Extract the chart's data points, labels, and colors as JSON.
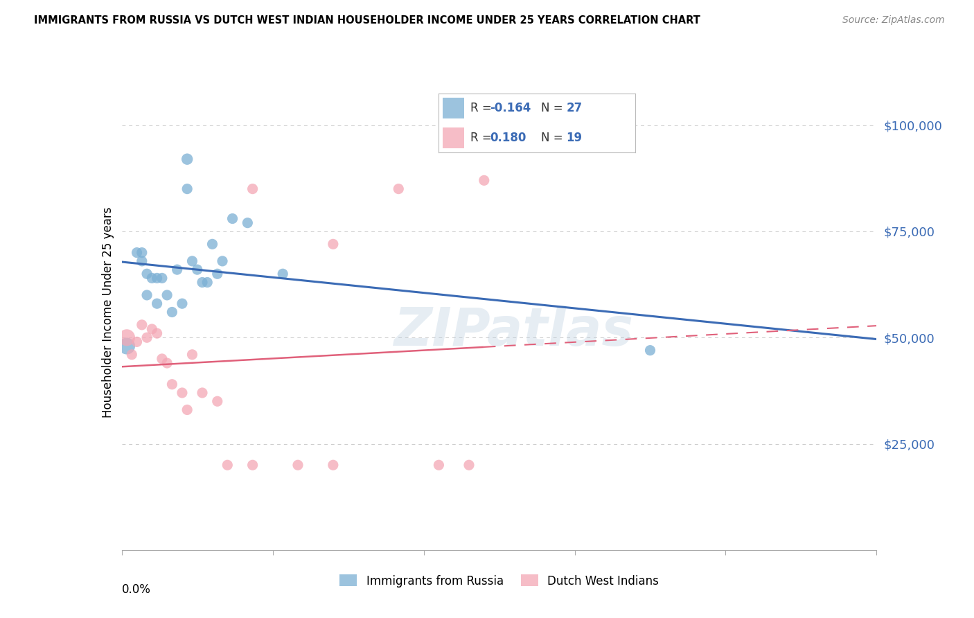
{
  "title": "IMMIGRANTS FROM RUSSIA VS DUTCH WEST INDIAN HOUSEHOLDER INCOME UNDER 25 YEARS CORRELATION CHART",
  "source": "Source: ZipAtlas.com",
  "ylabel": "Householder Income Under 25 years",
  "watermark": "ZIPatlas",
  "xlim": [
    0.0,
    0.15
  ],
  "ylim": [
    0,
    112000
  ],
  "yticks": [
    25000,
    50000,
    75000,
    100000
  ],
  "ytick_labels": [
    "$25,000",
    "$50,000",
    "$75,000",
    "$100,000"
  ],
  "blue_color": "#7BAFD4",
  "pink_color": "#F4A7B5",
  "blue_line_color": "#3B6BB5",
  "pink_line_color": "#E0607A",
  "tick_label_color": "#3B6BB5",
  "grid_color": "#CCCCCC",
  "background_color": "#FFFFFF",
  "legend_r1_val": "-0.164",
  "legend_n1_val": "27",
  "legend_r2_val": "0.180",
  "legend_n2_val": "19",
  "legend_label1": "Immigrants from Russia",
  "legend_label2": "Dutch West Indians",
  "blue_scatter_x": [
    0.001,
    0.003,
    0.004,
    0.004,
    0.005,
    0.005,
    0.006,
    0.007,
    0.007,
    0.008,
    0.009,
    0.01,
    0.011,
    0.012,
    0.013,
    0.013,
    0.014,
    0.015,
    0.016,
    0.017,
    0.018,
    0.019,
    0.02,
    0.022,
    0.025,
    0.032,
    0.105
  ],
  "blue_scatter_y": [
    48000,
    70000,
    70000,
    68000,
    65000,
    60000,
    64000,
    64000,
    58000,
    64000,
    60000,
    56000,
    66000,
    58000,
    85000,
    92000,
    68000,
    66000,
    63000,
    63000,
    72000,
    65000,
    68000,
    78000,
    77000,
    65000,
    47000
  ],
  "blue_scatter_sizes": [
    300,
    120,
    120,
    120,
    120,
    120,
    120,
    120,
    120,
    120,
    120,
    120,
    120,
    120,
    120,
    140,
    120,
    120,
    120,
    120,
    120,
    120,
    120,
    120,
    120,
    120,
    120
  ],
  "pink_scatter_x": [
    0.001,
    0.002,
    0.003,
    0.004,
    0.005,
    0.006,
    0.007,
    0.008,
    0.009,
    0.01,
    0.012,
    0.013,
    0.014,
    0.016,
    0.019,
    0.021,
    0.026,
    0.035,
    0.042
  ],
  "pink_scatter_y": [
    50000,
    46000,
    49000,
    53000,
    50000,
    52000,
    51000,
    45000,
    44000,
    39000,
    37000,
    33000,
    46000,
    37000,
    35000,
    20000,
    20000,
    20000,
    20000
  ],
  "pink_scatter_sizes": [
    300,
    120,
    120,
    120,
    120,
    120,
    120,
    120,
    120,
    120,
    120,
    120,
    120,
    120,
    120,
    120,
    120,
    120,
    120
  ],
  "additional_pink_x": [
    0.026,
    0.042,
    0.055,
    0.063,
    0.069,
    0.072
  ],
  "additional_pink_y": [
    85000,
    72000,
    85000,
    20000,
    20000,
    87000
  ],
  "additional_pink_sizes": [
    120,
    120,
    120,
    120,
    120,
    120
  ]
}
